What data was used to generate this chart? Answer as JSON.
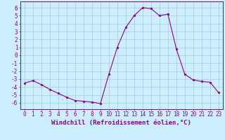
{
  "x": [
    0,
    1,
    2,
    3,
    4,
    5,
    6,
    7,
    8,
    9,
    10,
    11,
    12,
    13,
    14,
    15,
    16,
    17,
    18,
    19,
    20,
    21,
    22,
    23
  ],
  "y": [
    -3.5,
    -3.2,
    -3.7,
    -4.3,
    -4.8,
    -5.3,
    -5.7,
    -5.8,
    -5.9,
    -6.1,
    -2.4,
    1.0,
    3.5,
    5.0,
    6.0,
    5.9,
    5.0,
    5.2,
    0.8,
    -2.4,
    -3.1,
    -3.3,
    -3.4,
    -4.7
  ],
  "xlabel": "Windchill (Refroidissement éolien,°C)",
  "line_color": "#880088",
  "marker": "o",
  "marker_size": 1.8,
  "bg_color": "#cceeff",
  "grid_color": "#aacccc",
  "ylim": [
    -6.8,
    6.8
  ],
  "yticks": [
    -6,
    -5,
    -4,
    -3,
    -2,
    -1,
    0,
    1,
    2,
    3,
    4,
    5,
    6
  ],
  "xticks": [
    0,
    1,
    2,
    3,
    4,
    5,
    6,
    7,
    8,
    9,
    10,
    11,
    12,
    13,
    14,
    15,
    16,
    17,
    18,
    19,
    20,
    21,
    22,
    23
  ],
  "tick_fontsize": 5.5,
  "xlabel_fontsize": 6.5
}
